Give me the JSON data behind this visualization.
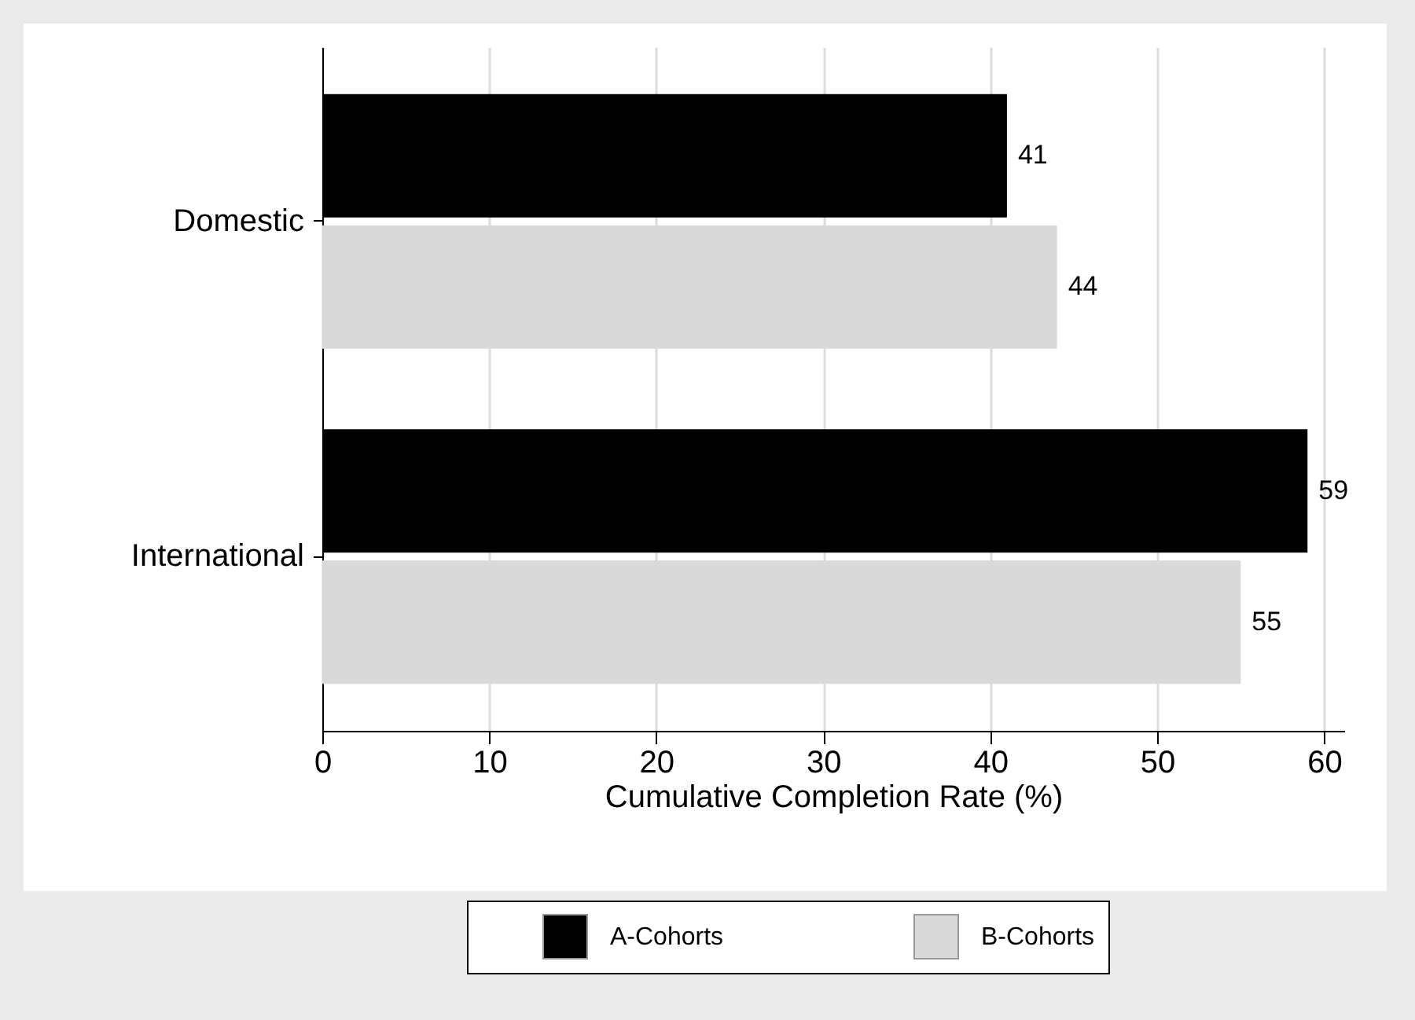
{
  "chart_data": {
    "type": "bar",
    "orientation": "horizontal",
    "xlabel": "Cumulative Completion Rate (%)",
    "categories": [
      "Domestic",
      "International"
    ],
    "series": [
      {
        "name": "A-Cohorts",
        "color": "#000000",
        "values": [
          41,
          59
        ]
      },
      {
        "name": "B-Cohorts",
        "color": "#d9d9d9",
        "values": [
          44,
          55
        ]
      }
    ],
    "xlim": [
      0,
      61.2
    ],
    "xticks": [
      0,
      10,
      20,
      30,
      40,
      50,
      60
    ],
    "grid": "x",
    "legend": "bottom",
    "data_labels": true
  }
}
